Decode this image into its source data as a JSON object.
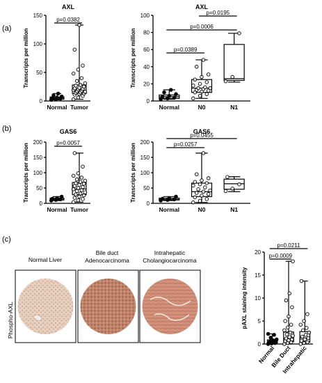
{
  "panels": {
    "a": "(a)",
    "b": "(b)",
    "c": "(c)"
  },
  "tissue": {
    "ylabel": "Phospho-AXL",
    "normal": "Normal Liver",
    "bile_1": "Bile duct",
    "bile_2": "Adenocarcinoma",
    "intra_1": "Intrahepatic",
    "intra_2": "Cholangiocarcinoma",
    "colors": {
      "normal": "#e4cbb8",
      "bile": "#bf7f63",
      "intra": "#cf8e70"
    }
  },
  "chart_data": [
    {
      "id": "axl_tumor",
      "type": "box",
      "title": "AXL",
      "xlabel": "",
      "ylabel": "Transcripts per million",
      "ylim": [
        0,
        150
      ],
      "yticks": [
        0,
        50,
        100,
        150
      ],
      "categories": [
        "Normal",
        "Tumor"
      ],
      "boxes": [
        {
          "min": 2,
          "q1": 3,
          "median": 5,
          "q3": 7,
          "max": 13
        },
        {
          "min": 3,
          "q1": 13,
          "median": 19,
          "q3": 28,
          "max": 133
        }
      ],
      "points": [
        [
          2,
          3,
          4,
          5,
          6,
          8,
          10,
          13
        ],
        [
          3,
          6,
          9,
          11,
          12,
          13,
          14,
          15,
          16,
          17,
          18,
          19,
          20,
          21,
          22,
          23,
          25,
          27,
          28,
          31,
          35,
          40,
          48,
          55,
          62,
          90,
          133
        ]
      ],
      "markers": [
        "filled",
        "open"
      ],
      "comparisons": [
        {
          "from": 0,
          "to": 1,
          "label": "p=0.0382"
        }
      ]
    },
    {
      "id": "axl_stage",
      "type": "box",
      "title": "AXL",
      "xlabel": "",
      "ylabel": "Transcripts per million",
      "ylim": [
        0,
        100
      ],
      "yticks": [
        0,
        20,
        40,
        60,
        80,
        100
      ],
      "categories": [
        "Normal",
        "N0",
        "N1"
      ],
      "boxes": [
        {
          "min": 2,
          "q1": 3,
          "median": 5,
          "q3": 7,
          "max": 13
        },
        {
          "min": 3,
          "q1": 10,
          "median": 15,
          "q3": 25,
          "max": 48
        },
        {
          "min": 22,
          "q1": 24,
          "median": 26,
          "q3": 66,
          "max": 79
        }
      ],
      "points": [
        [
          2,
          3,
          4,
          5,
          6,
          8,
          10,
          13
        ],
        [
          3,
          6,
          8,
          10,
          11,
          12,
          13,
          14,
          15,
          15,
          16,
          18,
          20,
          22,
          25,
          28,
          31,
          40,
          48
        ],
        [
          23,
          28,
          79
        ]
      ],
      "markers": [
        "filled",
        "open",
        "open"
      ],
      "comparisons": [
        {
          "from": 0,
          "to": 1,
          "label": "p=0.0389"
        },
        {
          "from": 0,
          "to": 2,
          "label": "p=0.0006"
        },
        {
          "from": 1,
          "to": 2,
          "label": "p=0.0195"
        }
      ]
    },
    {
      "id": "gas6_tumor",
      "type": "box",
      "title": "GAS6",
      "xlabel": "",
      "ylabel": "Transcripts per million",
      "ylim": [
        0,
        200
      ],
      "yticks": [
        0,
        50,
        100,
        150,
        200
      ],
      "categories": [
        "Normal",
        "Tumor"
      ],
      "boxes": [
        {
          "min": 9,
          "q1": 11,
          "median": 13,
          "q3": 17,
          "max": 22
        },
        {
          "min": 4,
          "q1": 28,
          "median": 47,
          "q3": 68,
          "max": 164
        }
      ],
      "points": [
        [
          9,
          11,
          13,
          15,
          17,
          22
        ],
        [
          4,
          10,
          14,
          18,
          22,
          26,
          29,
          32,
          36,
          40,
          43,
          46,
          50,
          53,
          57,
          60,
          64,
          66,
          70,
          74,
          78,
          84,
          90,
          98,
          120,
          164
        ]
      ],
      "markers": [
        "filled",
        "open"
      ],
      "comparisons": [
        {
          "from": 0,
          "to": 1,
          "label": "p=0.0057"
        }
      ]
    },
    {
      "id": "gas6_stage",
      "type": "box",
      "title": "GAS6",
      "xlabel": "",
      "ylabel": "Transcripts per million",
      "ylim": [
        0,
        200
      ],
      "yticks": [
        0,
        50,
        100,
        150,
        200
      ],
      "categories": [
        "Normal",
        "N0",
        "N1"
      ],
      "boxes": [
        {
          "min": 9,
          "q1": 11,
          "median": 13,
          "q3": 17,
          "max": 22
        },
        {
          "min": 3,
          "q1": 22,
          "median": 38,
          "q3": 66,
          "max": 164
        },
        {
          "min": 38,
          "q1": 46,
          "median": 64,
          "q3": 79,
          "max": 87
        }
      ],
      "points": [
        [
          9,
          11,
          13,
          15,
          17,
          22
        ],
        [
          3,
          8,
          14,
          20,
          25,
          30,
          34,
          38,
          42,
          46,
          52,
          58,
          62,
          66,
          70,
          75,
          82,
          95,
          164
        ],
        [
          40,
          48,
          62,
          86
        ]
      ],
      "markers": [
        "filled",
        "open",
        "open"
      ],
      "comparisons": [
        {
          "from": 0,
          "to": 1,
          "label": "p=0.0257"
        },
        {
          "from": 0,
          "to": 2,
          "label": "p=0.0455"
        }
      ]
    },
    {
      "id": "paxl_staining",
      "type": "box",
      "title": "",
      "xlabel": "",
      "ylabel": "pAXL staining intensity",
      "ylim": [
        0,
        20
      ],
      "yticks": [
        0,
        5,
        10,
        15,
        20
      ],
      "categories": [
        "Normal",
        "Bile Duct",
        "Intrahepatic"
      ],
      "boxes": [
        {
          "min": 0,
          "q1": 0.2,
          "median": 0.5,
          "q3": 0.9,
          "max": 2.2
        },
        {
          "min": 0,
          "q1": 0.5,
          "median": 1.2,
          "q3": 2.6,
          "max": 18
        },
        {
          "min": 0,
          "q1": 0.4,
          "median": 1.3,
          "q3": 2.7,
          "max": 13.7
        }
      ],
      "points": [
        [
          0,
          0.1,
          0.2,
          0.3,
          0.4,
          0.5,
          0.6,
          0.8,
          1.0,
          1.4,
          2.0,
          2.2
        ],
        [
          0,
          0.2,
          0.4,
          0.6,
          0.8,
          1.0,
          1.2,
          1.5,
          1.8,
          2.1,
          2.5,
          3.0,
          3.6,
          4.2,
          5.0,
          6.0,
          8.0,
          9.5,
          11.0,
          18.0
        ],
        [
          0,
          0.2,
          0.4,
          0.7,
          1.0,
          1.3,
          1.6,
          2.0,
          2.5,
          3.0,
          3.5,
          4.2,
          5.0,
          6.5,
          13.7
        ]
      ],
      "markers": [
        "filled",
        "open",
        "open"
      ],
      "comparisons": [
        {
          "from": 0,
          "to": 1,
          "label": "p=0.0009"
        },
        {
          "from": 0,
          "to": 2,
          "label": "p=0.0211"
        }
      ]
    }
  ]
}
